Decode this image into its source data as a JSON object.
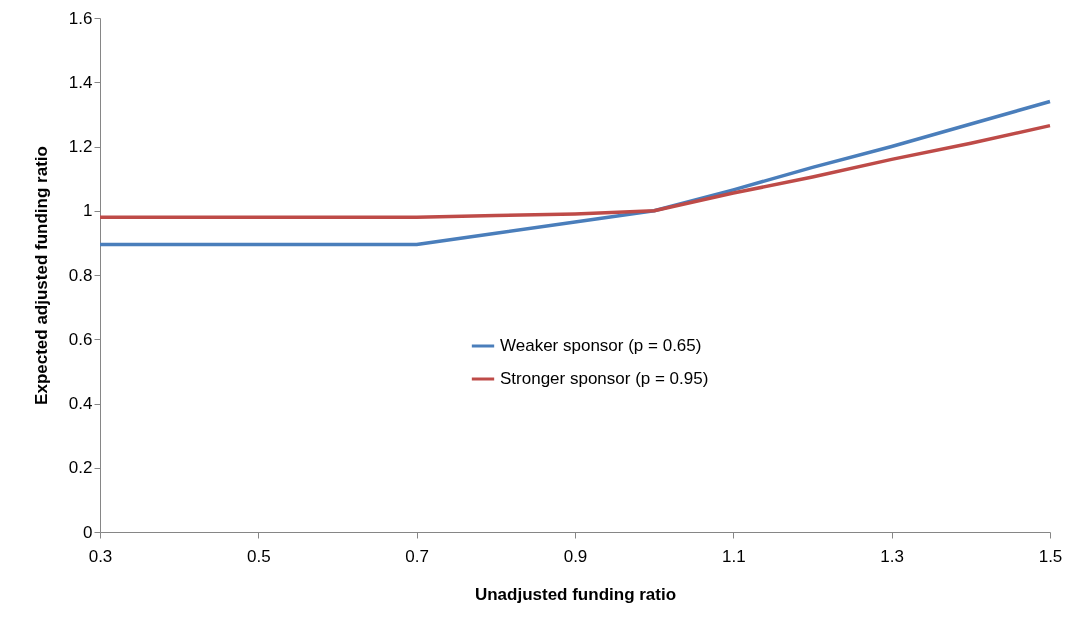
{
  "chart_data": {
    "type": "line",
    "xlabel": "Unadjusted funding ratio",
    "ylabel": "Expected adjusted funding ratio",
    "x": [
      0.3,
      0.4,
      0.5,
      0.6,
      0.7,
      0.8,
      0.9,
      1.0,
      1.1,
      1.2,
      1.3,
      1.4,
      1.5
    ],
    "series": [
      {
        "name": "Weaker sponsor (p = 0.65)",
        "color": "#4a7ebb",
        "values": [
          0.895,
          0.895,
          0.895,
          0.895,
          0.895,
          0.93,
          0.965,
          1.0,
          1.065,
          1.135,
          1.2,
          1.27,
          1.34
        ]
      },
      {
        "name": "Stronger sponsor (p = 0.95)",
        "color": "#be4b48",
        "values": [
          0.98,
          0.98,
          0.98,
          0.98,
          0.98,
          0.985,
          0.99,
          1.0,
          1.055,
          1.105,
          1.16,
          1.21,
          1.265
        ]
      }
    ],
    "xlim": [
      0.3,
      1.5
    ],
    "xticks": [
      0.3,
      0.5,
      0.7,
      0.9,
      1.1,
      1.3,
      1.5
    ],
    "ylim": [
      0,
      1.6
    ],
    "yticks": [
      0,
      0.2,
      0.4,
      0.6,
      0.8,
      1,
      1.2,
      1.4,
      1.6
    ],
    "grid": false,
    "legend": "center",
    "marker": "none",
    "line_style": "solid"
  }
}
